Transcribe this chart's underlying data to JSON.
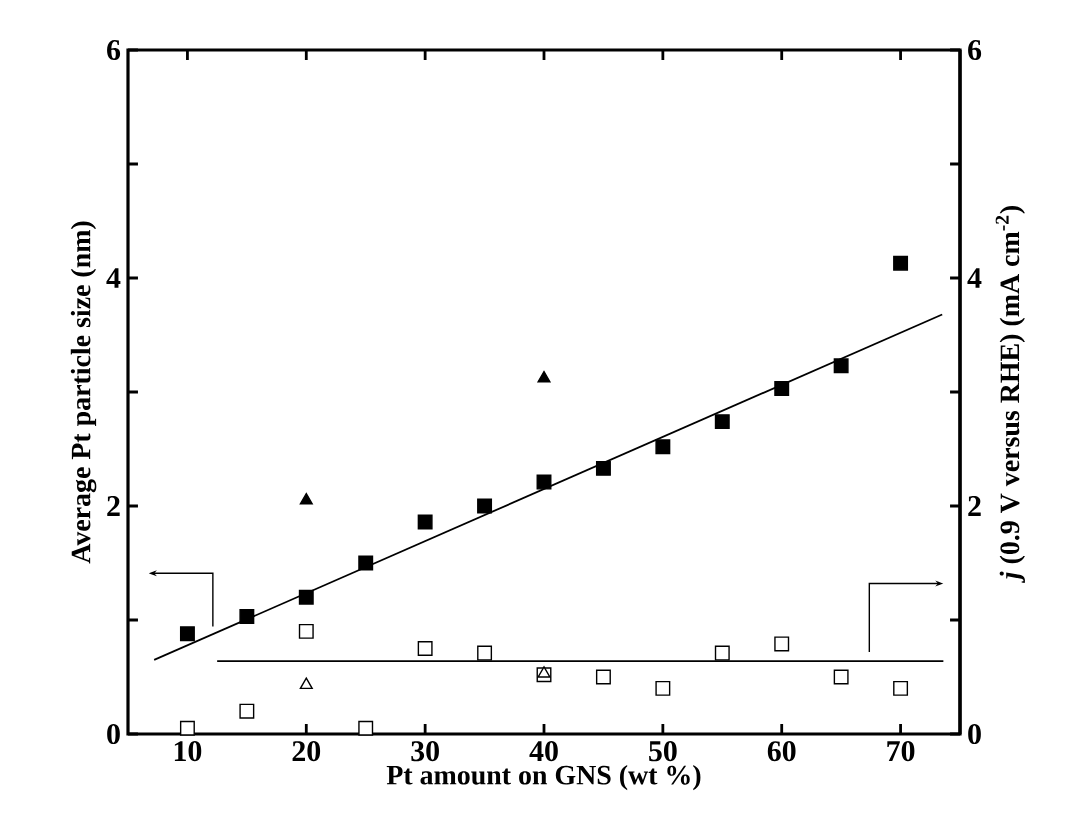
{
  "chart_data": {
    "type": "scatter",
    "xlabel": "Pt amount on GNS (wt %)",
    "ylabel": "Average Pt particle size (nm)",
    "y2label": "*j* (0.9 V versus RHE) (mA cm$^{-2}$)",
    "xlim": [
      5,
      75
    ],
    "xticks": [
      10,
      20,
      30,
      40,
      50,
      60,
      70
    ],
    "ylim": [
      0,
      6
    ],
    "yticks": [
      0,
      {
        "value": 1,
        "label": null
      },
      2,
      {
        "value": 3,
        "label": null
      },
      4,
      {
        "value": 5,
        "label": null
      },
      6
    ],
    "y2lim": [
      0,
      6
    ],
    "y2ticks": [
      0,
      {
        "value": 1,
        "label": null
      },
      2,
      {
        "value": 3,
        "label": null
      },
      4,
      {
        "value": 5,
        "label": null
      },
      6
    ],
    "series": [
      {
        "marker": "square",
        "color": "#000000",
        "x": [
          10,
          15,
          20,
          25,
          30,
          35,
          40,
          45,
          50,
          55,
          60,
          65,
          70
        ],
        "values": [
          0.88,
          1.03,
          1.2,
          1.5,
          1.86,
          2.0,
          2.21,
          2.33,
          2.52,
          2.74,
          3.03,
          3.23,
          4.13
        ]
      },
      {
        "marker": "triangle",
        "color": "#000000",
        "x": [
          20,
          40
        ],
        "values": [
          2.05,
          3.12
        ]
      },
      {
        "type": "line",
        "color": "#000000",
        "x": [
          7.2,
          73.5
        ],
        "values": [
          0.65,
          3.68
        ]
      },
      {
        "axis": "y2",
        "marker": "square",
        "color": "#000000",
        "x": [
          10,
          15,
          20,
          25,
          30,
          35,
          40,
          45,
          50,
          55,
          60,
          65,
          70
        ],
        "values": [
          0.05,
          0.2,
          0.9,
          0.05,
          0.75,
          0.71,
          0.52,
          0.5,
          0.4,
          0.71,
          0.79,
          0.5,
          0.4
        ]
      },
      {
        "axis": "y2",
        "marker": "triangle",
        "color": "#000000",
        "x": [
          20,
          40
        ],
        "values": [
          0.43,
          0.53
        ]
      },
      {
        "type": "line",
        "axis": "y2",
        "color": "#000000",
        "x": [
          12.5,
          73.6
        ],
        "values": [
          0.64,
          0.64
        ]
      }
    ]
  }
}
